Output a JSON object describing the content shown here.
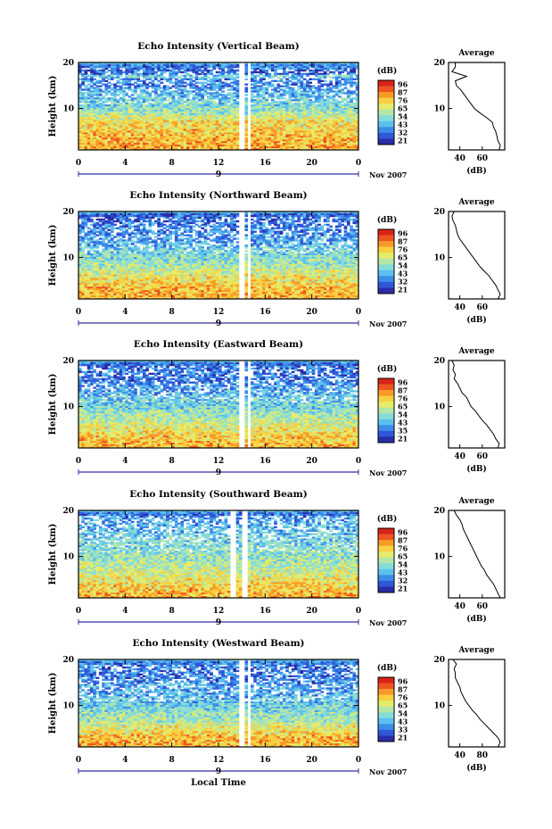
{
  "figure": {
    "xlabel": "Local Time",
    "colormap": [
      "#2a2da8",
      "#2f58d8",
      "#3c8ce8",
      "#5cc0ee",
      "#86dcd8",
      "#b4e6a8",
      "#e4ec6c",
      "#f8d040",
      "#f89a28",
      "#ee5420",
      "#d82418"
    ]
  },
  "chart_data": [
    {
      "type": "heatmap",
      "title": "Echo Intensity (Vertical Beam)",
      "ylabel": "Height (km)",
      "x_ticks": [
        "0",
        "4",
        "8",
        "12",
        "16",
        "20",
        "0"
      ],
      "xlim": [
        0,
        24
      ],
      "ylim": [
        1,
        20
      ],
      "y_ticks": [
        "20",
        "10"
      ],
      "date_marker": "9",
      "date_label": "Nov 2007",
      "colorbar": {
        "unit": "(dB)",
        "ticks": [
          "96",
          "87",
          "76",
          "65",
          "54",
          "43",
          "32",
          "21"
        ],
        "range": [
          21,
          96
        ]
      },
      "gap_hours": [
        [
          13.7,
          14.2
        ],
        [
          14.5,
          14.8
        ]
      ],
      "profile": {
        "title": "Average",
        "xlabel": "(dB)",
        "x_ticks": [
          "40",
          "60"
        ],
        "xlim": [
          30,
          80
        ],
        "y_ticks": [
          "20",
          "10"
        ],
        "heights": [
          20,
          19,
          18,
          17,
          16,
          15,
          14,
          13,
          12,
          11,
          10,
          9,
          8,
          7,
          6,
          5,
          4,
          3,
          2,
          1
        ],
        "values": [
          36,
          36,
          33,
          46,
          36,
          37,
          41,
          44,
          47,
          50,
          53,
          58,
          64,
          69,
          70,
          72,
          73,
          74,
          76,
          75
        ]
      }
    },
    {
      "type": "heatmap",
      "title": "Echo Intensity (Northward Beam)",
      "ylabel": "Height (km)",
      "x_ticks": [
        "0",
        "4",
        "8",
        "12",
        "16",
        "20",
        "0"
      ],
      "xlim": [
        0,
        24
      ],
      "ylim": [
        1,
        20
      ],
      "y_ticks": [
        "20",
        "10"
      ],
      "date_marker": "9",
      "date_label": "Nov 2007",
      "colorbar": {
        "unit": "(dB)",
        "ticks": [
          "96",
          "87",
          "76",
          "65",
          "54",
          "43",
          "32",
          "21"
        ],
        "range": [
          21,
          96
        ]
      },
      "gap_hours": [
        [
          13.7,
          14.2
        ],
        [
          14.5,
          14.8
        ]
      ],
      "profile": {
        "title": "Average",
        "xlabel": "(dB)",
        "x_ticks": [
          "40",
          "60"
        ],
        "xlim": [
          30,
          80
        ],
        "y_ticks": [
          "20",
          "10"
        ],
        "heights": [
          20,
          19,
          18,
          17,
          16,
          15,
          14,
          13,
          12,
          11,
          10,
          9,
          8,
          7,
          6,
          5,
          4,
          3,
          2,
          1
        ],
        "values": [
          35,
          33,
          34,
          36,
          37,
          38,
          40,
          43,
          46,
          49,
          52,
          55,
          58,
          62,
          66,
          69,
          72,
          74,
          76,
          74
        ]
      }
    },
    {
      "type": "heatmap",
      "title": "Echo Intensity (Eastward Beam)",
      "ylabel": "Height (km)",
      "x_ticks": [
        "0",
        "4",
        "8",
        "12",
        "16",
        "20",
        "0"
      ],
      "xlim": [
        0,
        24
      ],
      "ylim": [
        1,
        20
      ],
      "y_ticks": [
        "20",
        "10"
      ],
      "date_marker": "9",
      "date_label": "Nov 2007",
      "colorbar": {
        "unit": "(dB)",
        "ticks": [
          "96",
          "87",
          "76",
          "65",
          "54",
          "43",
          "35",
          "21"
        ],
        "range": [
          21,
          96
        ]
      },
      "gap_hours": [
        [
          13.7,
          14.2
        ],
        [
          14.5,
          14.8
        ]
      ],
      "profile": {
        "title": "Average",
        "xlabel": "(dB)",
        "x_ticks": [
          "40",
          "60"
        ],
        "xlim": [
          30,
          80
        ],
        "y_ticks": [
          "20",
          "10"
        ],
        "heights": [
          20,
          19,
          18,
          17,
          16,
          15,
          14,
          13,
          12,
          11,
          10,
          9,
          8,
          7,
          6,
          5,
          4,
          3,
          2,
          1
        ],
        "values": [
          33,
          35,
          34,
          36,
          35,
          38,
          40,
          42,
          46,
          48,
          50,
          54,
          57,
          60,
          64,
          67,
          70,
          72,
          75,
          74
        ]
      }
    },
    {
      "type": "heatmap",
      "title": "Echo Intensity (Southward Beam)",
      "ylabel": "Height (km)",
      "x_ticks": [
        "0",
        "4",
        "8",
        "12",
        "16",
        "20",
        "0"
      ],
      "xlim": [
        0,
        24
      ],
      "ylim": [
        1,
        20
      ],
      "y_ticks": [
        "20",
        "10"
      ],
      "date_marker": "9",
      "date_label": "Nov 2007",
      "colorbar": {
        "unit": "(dB)",
        "ticks": [
          "96",
          "87",
          "76",
          "65",
          "54",
          "43",
          "32",
          "21"
        ],
        "range": [
          21,
          96
        ]
      },
      "gap_hours": [
        [
          13.0,
          13.4
        ],
        [
          14.1,
          14.4
        ]
      ],
      "profile": {
        "title": "Average",
        "xlabel": "(dB)",
        "x_ticks": [
          "40",
          "60"
        ],
        "xlim": [
          30,
          80
        ],
        "y_ticks": [
          "20",
          "10"
        ],
        "heights": [
          20,
          19,
          18,
          17,
          16,
          15,
          14,
          13,
          12,
          11,
          10,
          9,
          8,
          7,
          6,
          5,
          4,
          3,
          2,
          1
        ],
        "values": [
          35,
          37,
          40,
          42,
          43,
          45,
          47,
          49,
          51,
          53,
          55,
          57,
          59,
          62,
          64,
          67,
          70,
          72,
          74,
          76
        ]
      }
    },
    {
      "type": "heatmap",
      "title": "Echo Intensity (Westward Beam)",
      "ylabel": "Height (km)",
      "x_ticks": [
        "0",
        "4",
        "8",
        "12",
        "16",
        "20",
        "0"
      ],
      "xlim": [
        0,
        24
      ],
      "ylim": [
        1,
        20
      ],
      "y_ticks": [
        "20",
        "10"
      ],
      "date_marker": "9",
      "date_label": "Nov 2007",
      "colorbar": {
        "unit": "(dB)",
        "ticks": [
          "96",
          "87",
          "76",
          "65",
          "54",
          "43",
          "33",
          "21"
        ],
        "range": [
          21,
          96
        ]
      },
      "gap_hours": [
        [
          13.7,
          14.2
        ],
        [
          14.5,
          14.8
        ]
      ],
      "profile": {
        "title": "Average",
        "xlabel": "(dB)",
        "x_ticks": [
          "40",
          "80"
        ],
        "xlim": [
          30,
          80
        ],
        "y_ticks": [
          "20",
          "10"
        ],
        "heights": [
          20,
          19,
          18,
          17,
          16,
          15,
          14,
          13,
          12,
          11,
          10,
          9,
          8,
          7,
          6,
          5,
          4,
          3,
          2,
          1
        ],
        "values": [
          34,
          37,
          35,
          36,
          36,
          38,
          40,
          41,
          43,
          45,
          48,
          51,
          55,
          58,
          62,
          66,
          70,
          74,
          76,
          74
        ]
      }
    }
  ]
}
